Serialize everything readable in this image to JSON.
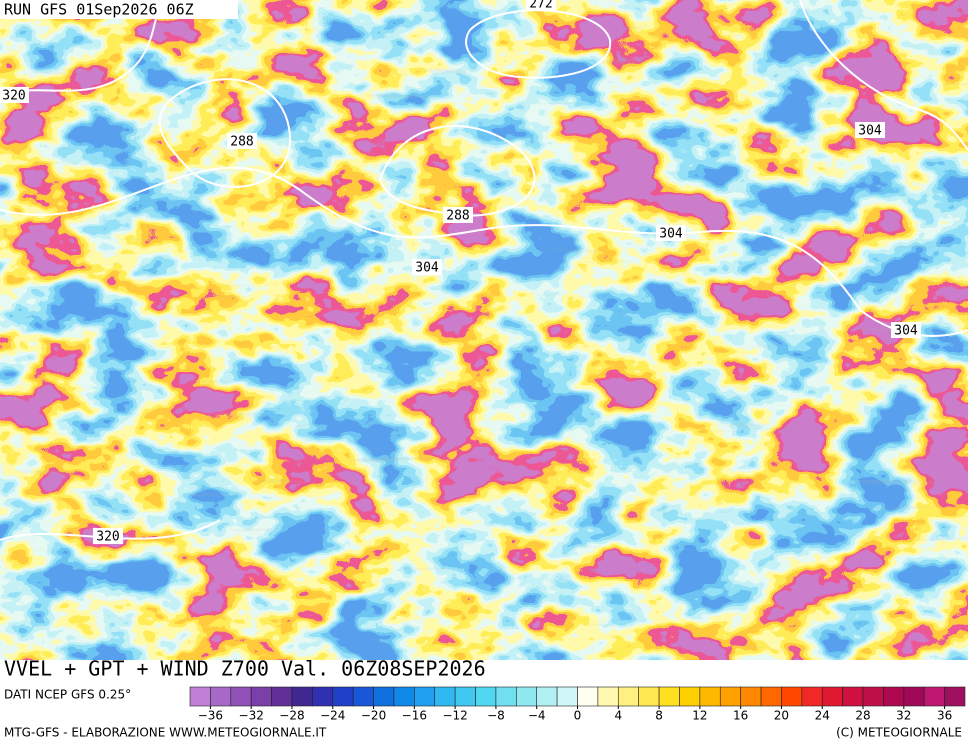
{
  "header": {
    "run": "RUN GFS 01Sep2026 06Z"
  },
  "map": {
    "contour_labels": [
      272,
      320,
      288,
      288,
      304,
      304,
      304,
      304,
      320
    ]
  },
  "footer": {
    "title": "VVEL + GPT + WIND Z700 Val. 06Z08SEP2026",
    "source": "DATI NCEP GFS 0.25°",
    "credit_left": "MTG-GFS - ELABORAZIONE WWW.METEOGIORNALE.IT",
    "credit_right": "(C) METEOGIORNALE"
  },
  "colorbar": {
    "lim": [
      -38,
      38
    ],
    "ticks": [
      {
        "value": -36,
        "label": "−36"
      },
      {
        "value": -32,
        "label": "−32"
      },
      {
        "value": -28,
        "label": "−28"
      },
      {
        "value": -24,
        "label": "−24"
      },
      {
        "value": -20,
        "label": "−20"
      },
      {
        "value": -16,
        "label": "−16"
      },
      {
        "value": -12,
        "label": "−12"
      },
      {
        "value": -8,
        "label": "−8"
      },
      {
        "value": -4,
        "label": "−4"
      },
      0,
      4,
      8,
      12,
      16,
      20,
      24,
      28,
      32,
      36
    ],
    "colors": [
      "#c080d8",
      "#a868c8",
      "#9050b8",
      "#7840a8",
      "#603098",
      "#402890",
      "#3030b0",
      "#2040c8",
      "#1858d8",
      "#1070e0",
      "#1088e8",
      "#20a0f0",
      "#30b8f0",
      "#40c8f0",
      "#50d8f0",
      "#70e0f0",
      "#90e8f0",
      "#b0f0f0",
      "#d0f8f8",
      "#fffff0",
      "#fff8b0",
      "#fff080",
      "#ffe850",
      "#ffe020",
      "#ffd000",
      "#ffb800",
      "#ffa000",
      "#ff8800",
      "#ff6800",
      "#ff4800",
      "#f02828",
      "#e01830",
      "#d01040",
      "#c01048",
      "#b00850",
      "#a00858",
      "#c01870",
      "#a01060"
    ]
  }
}
